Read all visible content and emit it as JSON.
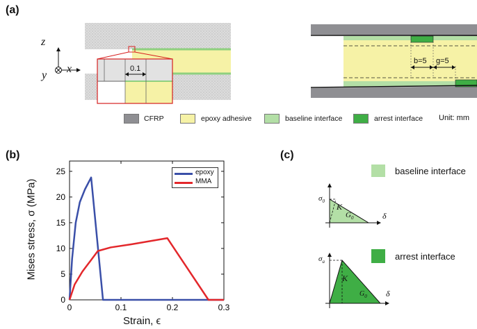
{
  "panels": {
    "a": "(a)",
    "b": "(b)",
    "c": "(c)"
  },
  "panel_a": {
    "axis_z": "z",
    "axis_x": "x",
    "axis_y": "y",
    "zoom_dim": "0.1",
    "dim_b": "b=5",
    "dim_g": "g=5",
    "legend": [
      {
        "label": "CFRP",
        "color": "#8f8f93"
      },
      {
        "label": "epoxy adhesive",
        "color": "#f6f2a6"
      },
      {
        "label": "baseline interface",
        "color": "#b3dfa6"
      },
      {
        "label": "arrest interface",
        "color": "#3fae45"
      }
    ],
    "unit": "Unit: mm",
    "colors": {
      "cfrp_pattern": "#d6d6d6",
      "adhesive": "#f6f2a6",
      "baseline": "#b3dfa6",
      "arrest": "#3fae45",
      "zoom_box": "#d62020"
    }
  },
  "chart_data": {
    "type": "line",
    "xlabel": "Strain, ϵ",
    "ylabel": "Mises stress, σ (MPa)",
    "xlim": [
      0,
      0.3
    ],
    "ylim": [
      0,
      27
    ],
    "xticks": [
      0,
      0.1,
      0.2,
      0.3
    ],
    "xtick_labels": [
      "0",
      "0.1",
      "0.2",
      "0.3"
    ],
    "yticks": [
      0,
      5,
      10,
      15,
      20,
      25
    ],
    "ytick_labels": [
      "0",
      "5",
      "10",
      "15",
      "20",
      "25"
    ],
    "grid": false,
    "legend_position": "top-right",
    "series": [
      {
        "name": "epoxy",
        "color": "#3a4fa8",
        "x": [
          0,
          0.005,
          0.012,
          0.02,
          0.03,
          0.042,
          0.065,
          0.3
        ],
        "y": [
          0,
          8,
          15,
          19,
          21.5,
          23.8,
          0,
          0
        ]
      },
      {
        "name": "MMA",
        "color": "#e3272b",
        "x": [
          0,
          0.01,
          0.025,
          0.04,
          0.055,
          0.08,
          0.12,
          0.19,
          0.27,
          0.3
        ],
        "y": [
          0,
          3,
          5.5,
          7.5,
          9.5,
          10.2,
          10.8,
          12,
          0,
          0
        ]
      }
    ]
  },
  "panel_c": {
    "baseline_label": "baseline interface",
    "arrest_label": "arrest interface",
    "sigma0": "σ",
    "sigma0_sub": "0",
    "sigmaa": "σ",
    "sigmaa_sub": "a",
    "K": "K",
    "G0": "G",
    "G0_sub": "0",
    "delta": "δ",
    "colors": {
      "baseline": "#b3dfa6",
      "arrest": "#3fae45"
    }
  }
}
